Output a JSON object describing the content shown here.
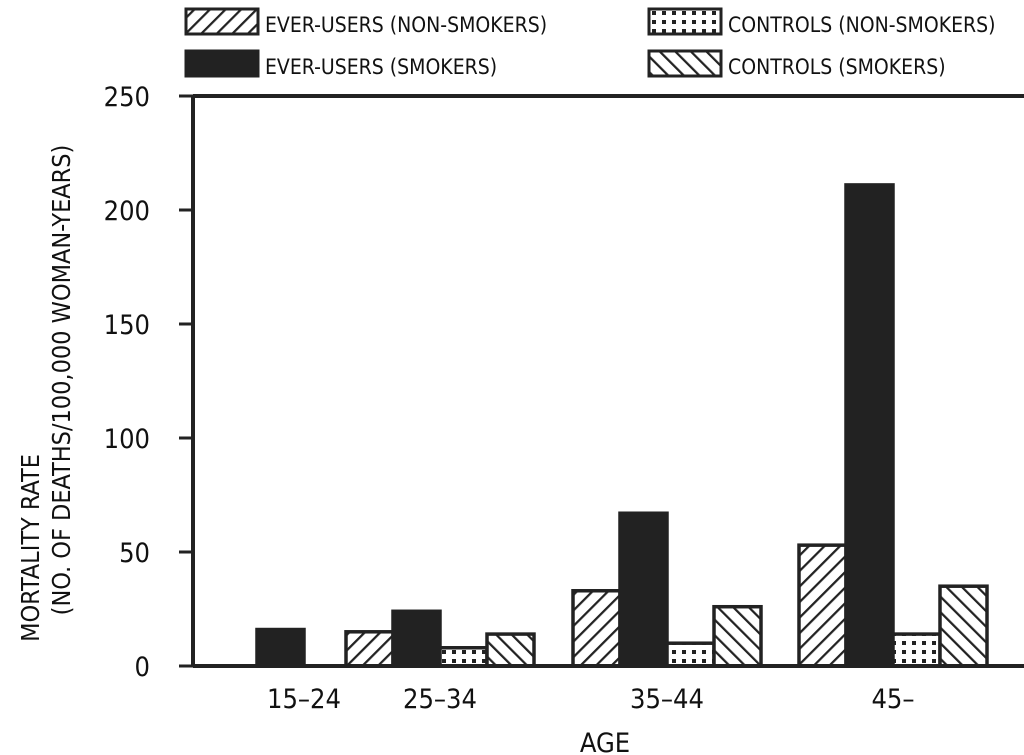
{
  "chart_data": {
    "type": "bar",
    "xlabel": "AGE",
    "ylabel_lines": [
      "MORTALITY RATE",
      "(NO. OF DEATHS/100,000 WOMAN-YEARS)"
    ],
    "categories": [
      "15–24",
      "25–34",
      "35–44",
      "45–"
    ],
    "ylim": [
      0,
      250
    ],
    "yticks": [
      0,
      50,
      100,
      150,
      200,
      250
    ],
    "grid": false,
    "legend_position": "top",
    "series": [
      {
        "name": "EVER-USERS (NON-SMOKERS)",
        "pattern": "diagonal-forward",
        "values": [
          0,
          15,
          33,
          53
        ]
      },
      {
        "name": "EVER-USERS (SMOKERS)",
        "pattern": "solid",
        "values": [
          16,
          24,
          67,
          211
        ]
      },
      {
        "name": "CONTROLS (NON-SMOKERS)",
        "pattern": "dotted",
        "values": [
          0,
          8,
          10,
          14
        ]
      },
      {
        "name": "CONTROLS (SMOKERS)",
        "pattern": "diagonal-back",
        "values": [
          0,
          14,
          26,
          35
        ]
      }
    ],
    "colors": {
      "ink": "#222222",
      "background": "#ffffff"
    }
  }
}
